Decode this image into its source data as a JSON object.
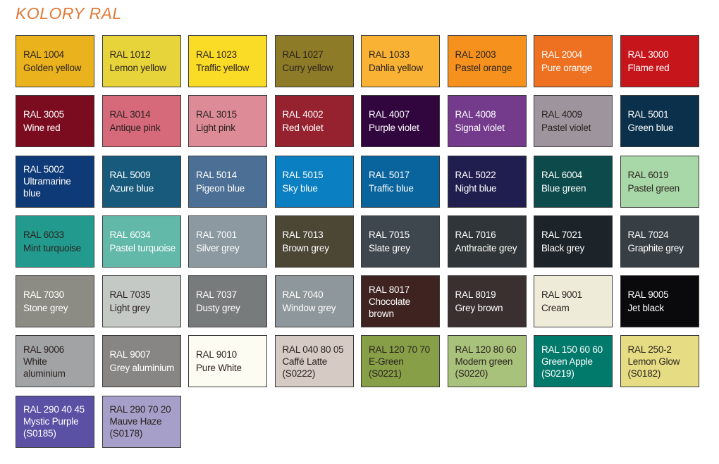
{
  "title": "KOLORY RAL",
  "title_color": "#e07b3a",
  "text_colors": {
    "dark": "#2b2320",
    "light": "#ffffff"
  },
  "swatches": [
    {
      "lines": [
        "RAL 1004",
        "Golden yellow"
      ],
      "color": "#eab21c",
      "text": "dark"
    },
    {
      "lines": [
        "RAL 1012",
        "Lemon yellow"
      ],
      "color": "#e7d33a",
      "text": "dark"
    },
    {
      "lines": [
        "RAL 1023",
        "Traffic yellow"
      ],
      "color": "#fadb26",
      "text": "dark"
    },
    {
      "lines": [
        "RAL 1027",
        "Curry yellow"
      ],
      "color": "#8e7b27",
      "text": "dark"
    },
    {
      "lines": [
        "RAL 1033",
        "Dahlia yellow"
      ],
      "color": "#f9b233",
      "text": "dark"
    },
    {
      "lines": [
        "RAL 2003",
        "Pastel orange"
      ],
      "color": "#f6911e",
      "text": "dark"
    },
    {
      "lines": [
        "RAL 2004",
        "Pure orange"
      ],
      "color": "#ee7021",
      "text": "light"
    },
    {
      "lines": [
        "RAL 3000",
        "Flame red"
      ],
      "color": "#c6161c",
      "text": "light"
    },
    {
      "lines": [
        "RAL 3005",
        "Wine red"
      ],
      "color": "#7b0c1f",
      "text": "light"
    },
    {
      "lines": [
        "RAL 3014",
        "Antique pink"
      ],
      "color": "#d6697a",
      "text": "dark"
    },
    {
      "lines": [
        "RAL 3015",
        "Light pink"
      ],
      "color": "#dc8b97",
      "text": "dark"
    },
    {
      "lines": [
        "RAL 4002",
        "Red violet"
      ],
      "color": "#96222f",
      "text": "light"
    },
    {
      "lines": [
        "RAL 4007",
        "Purple violet"
      ],
      "color": "#31063f",
      "text": "light"
    },
    {
      "lines": [
        "RAL 4008",
        "Signal violet"
      ],
      "color": "#743b8d",
      "text": "light"
    },
    {
      "lines": [
        "RAL 4009",
        "Pastel violet"
      ],
      "color": "#9e949e",
      "text": "dark"
    },
    {
      "lines": [
        "RAL 5001",
        "Green blue"
      ],
      "color": "#0a304c",
      "text": "light"
    },
    {
      "lines": [
        "RAL 5002",
        "Ultramarine",
        "blue"
      ],
      "color": "#0f3a78",
      "text": "light"
    },
    {
      "lines": [
        "RAL 5009",
        "Azure blue"
      ],
      "color": "#175a7c",
      "text": "light"
    },
    {
      "lines": [
        "RAL 5014",
        "Pigeon blue"
      ],
      "color": "#4c6f95",
      "text": "light"
    },
    {
      "lines": [
        "RAL 5015",
        "Sky blue"
      ],
      "color": "#0a7fc2",
      "text": "light"
    },
    {
      "lines": [
        "RAL 5017",
        "Traffic blue"
      ],
      "color": "#09639c",
      "text": "light"
    },
    {
      "lines": [
        "RAL 5022",
        "Night blue"
      ],
      "color": "#201d4f",
      "text": "light"
    },
    {
      "lines": [
        "RAL 6004",
        "Blue green"
      ],
      "color": "#0d4a4b",
      "text": "light"
    },
    {
      "lines": [
        "RAL 6019",
        "Pastel green"
      ],
      "color": "#a9d8a8",
      "text": "dark"
    },
    {
      "lines": [
        "RAL 6033",
        "Mint turquoise"
      ],
      "color": "#229a8d",
      "text": "dark"
    },
    {
      "lines": [
        "RAL 6034",
        "Pastel turquoise"
      ],
      "color": "#62b8a9",
      "text": "light"
    },
    {
      "lines": [
        "RAL 7001",
        "Silver grey"
      ],
      "color": "#8c99a1",
      "text": "light"
    },
    {
      "lines": [
        "RAL 7013",
        "Brown grey"
      ],
      "color": "#4c4634",
      "text": "light"
    },
    {
      "lines": [
        "RAL 7015",
        "Slate grey"
      ],
      "color": "#3f474e",
      "text": "light"
    },
    {
      "lines": [
        "RAL 7016",
        "Anthracite grey"
      ],
      "color": "#2f3538",
      "text": "light"
    },
    {
      "lines": [
        "RAL 7021",
        "Black grey"
      ],
      "color": "#1d2429",
      "text": "light"
    },
    {
      "lines": [
        "RAL 7024",
        "Graphite grey"
      ],
      "color": "#373f45",
      "text": "light"
    },
    {
      "lines": [
        "RAL 7030",
        "Stone grey"
      ],
      "color": "#8c8c84",
      "text": "light"
    },
    {
      "lines": [
        "RAL 7035",
        "Light grey"
      ],
      "color": "#c5c9c5",
      "text": "dark"
    },
    {
      "lines": [
        "RAL 7037",
        "Dusty grey"
      ],
      "color": "#787b7c",
      "text": "light"
    },
    {
      "lines": [
        "RAL 7040",
        "Window grey"
      ],
      "color": "#8e979b",
      "text": "light"
    },
    {
      "lines": [
        "RAL 8017",
        "Chocolate",
        "brown"
      ],
      "color": "#3f2320",
      "text": "light"
    },
    {
      "lines": [
        "RAL 8019",
        "Grey brown"
      ],
      "color": "#3a302f",
      "text": "light"
    },
    {
      "lines": [
        "RAL 9001",
        "Cream"
      ],
      "color": "#efebd9",
      "text": "dark"
    },
    {
      "lines": [
        "RAL 9005",
        "Jet black"
      ],
      "color": "#0a0a0c",
      "text": "light"
    },
    {
      "lines": [
        "RAL 9006",
        "White",
        "aluminium"
      ],
      "color": "#a1a3a5",
      "text": "dark"
    },
    {
      "lines": [
        "RAL 9007",
        "Grey aluminium"
      ],
      "color": "#878684",
      "text": "light"
    },
    {
      "lines": [
        "RAL 9010",
        "Pure White"
      ],
      "color": "#fdfcf2",
      "text": "dark"
    },
    {
      "lines": [
        "RAL 040 80 05",
        "Caffé Latte",
        "(S0222)"
      ],
      "color": "#d6cbc4",
      "text": "dark"
    },
    {
      "lines": [
        "RAL 120 70 70",
        "E-Green",
        "(S0221)"
      ],
      "color": "#87a047",
      "text": "dark"
    },
    {
      "lines": [
        "RAL 120 80 60",
        "Modern green",
        "(S0220)"
      ],
      "color": "#a9c27b",
      "text": "dark"
    },
    {
      "lines": [
        "RAL 150 60 60",
        "Green Apple",
        "(S0219)"
      ],
      "color": "#017a6c",
      "text": "light"
    },
    {
      "lines": [
        "RAL 250-2",
        "Lemon Glow",
        "(S0182)"
      ],
      "color": "#e6dc83",
      "text": "dark"
    },
    {
      "lines": [
        "RAL 290 40 45",
        "Mystic Purple",
        "(S0185)"
      ],
      "color": "#5a51a5",
      "text": "light"
    },
    {
      "lines": [
        "RAL 290 70 20",
        "Mauve Haze",
        "(S0178)"
      ],
      "color": "#a59fc9",
      "text": "dark"
    }
  ]
}
